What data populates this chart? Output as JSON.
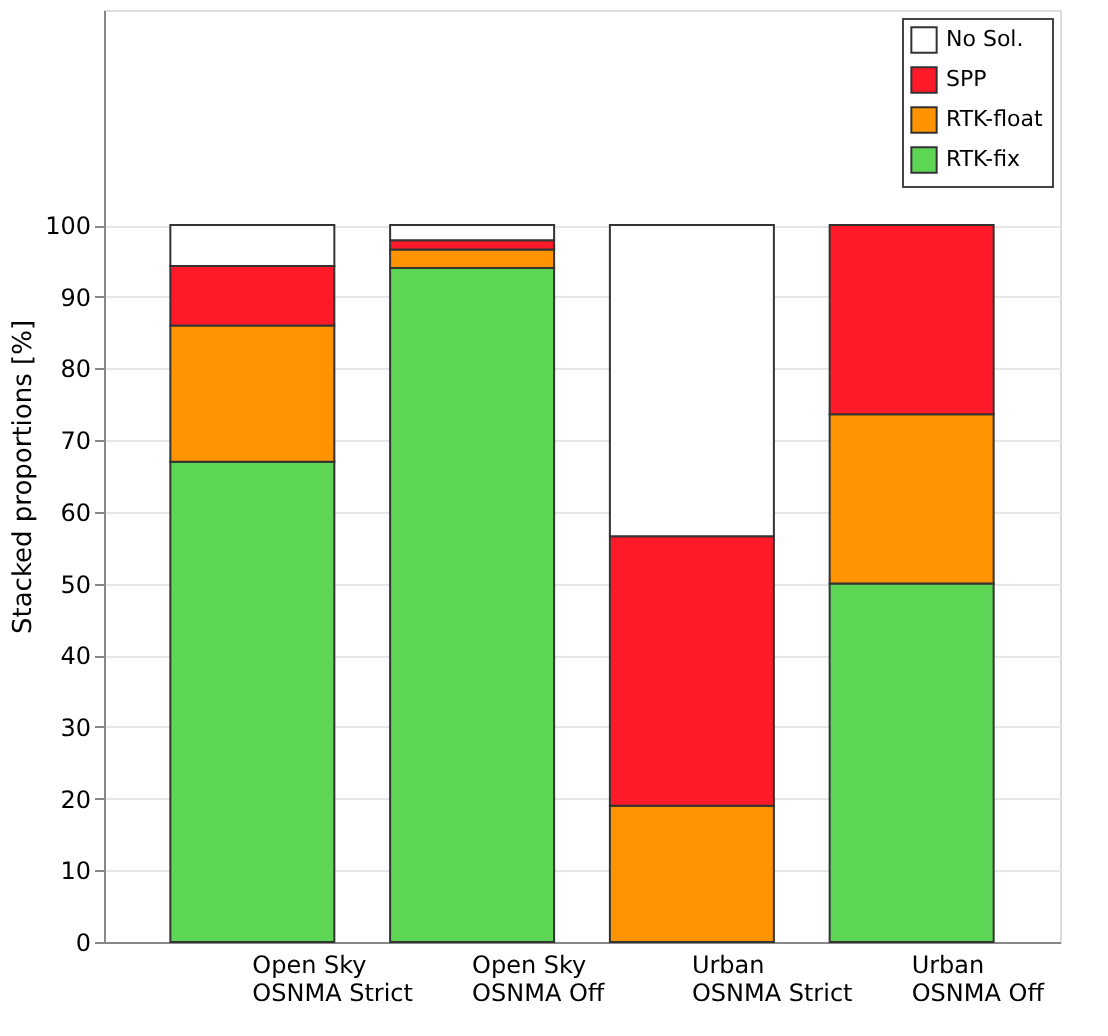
{
  "chart_data": {
    "type": "bar",
    "stacked": true,
    "ylabel": "Stacked proportions [%]",
    "categories": [
      "Open Sky\nOSNMA Strict",
      "Open Sky\nOSNMA Off",
      "Urban\nOSNMA Strict",
      "Urban\nOSNMA Off"
    ],
    "series": [
      {
        "name": "RTK-fix",
        "color": "#5dd555",
        "values": [
          67,
          94,
          0,
          50
        ]
      },
      {
        "name": "RTK-float",
        "color": "#ff9400",
        "values": [
          19,
          2.6,
          19,
          23.6
        ]
      },
      {
        "name": "SPP",
        "color": "#ff1a2a",
        "values": [
          8.3,
          1.3,
          37.6,
          26.4
        ]
      },
      {
        "name": "No Sol.",
        "color": "#ffffff",
        "values": [
          5.7,
          2.1,
          43.4,
          0
        ]
      }
    ],
    "ylim": [
      0,
      130
    ],
    "yticks": [
      0,
      10,
      20,
      30,
      40,
      50,
      60,
      70,
      80,
      90,
      100
    ],
    "grid": "y",
    "legend": "top right"
  }
}
